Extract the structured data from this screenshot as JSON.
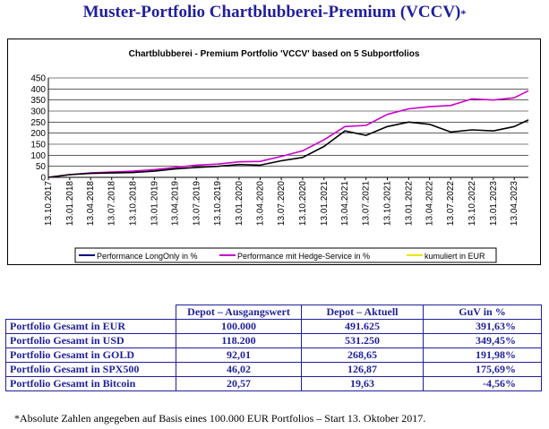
{
  "page": {
    "title": "Muster-Portfolio Chartblubberei-Premium (VCCV)",
    "title_mark": "*",
    "footnote": "*Absolute Zahlen angegeben auf Basis eines 100.000 EUR Portfolios – Start 13. Oktober 2017."
  },
  "chart_data": {
    "type": "line",
    "title": "Chartblubberei - Premium Portfolio 'VCCV' based on 5 Subportfolios",
    "xlabel": "",
    "ylabel": "",
    "ylim": [
      0,
      450
    ],
    "yticks": [
      "0",
      "50",
      "100",
      "150",
      "200",
      "250",
      "300",
      "350",
      "400",
      "450"
    ],
    "grid": true,
    "legend_position": "bottom",
    "x_ticks": [
      "13.10.2017",
      "13.01.2018",
      "13.04.2018",
      "13.07.2018",
      "13.10.2018",
      "13.01.2019",
      "13.04.2019",
      "13.07.2019",
      "13.10.2019",
      "13.01.2020",
      "13.04.2020",
      "13.07.2020",
      "13.10.2020",
      "13.01.2021",
      "13.04.2021",
      "13.07.2021",
      "13.10.2021",
      "13.01.2022",
      "13.04.2022",
      "13.07.2022",
      "13.10.2022",
      "13.01.2023",
      "13.04.2023"
    ],
    "series": [
      {
        "name": "Performance LongOnly in %",
        "color": "#000000",
        "x": [
          "13.10.2017",
          "13.01.2018",
          "13.04.2018",
          "13.07.2018",
          "13.10.2018",
          "13.01.2019",
          "13.04.2019",
          "13.07.2019",
          "13.10.2019",
          "13.01.2020",
          "13.04.2020",
          "13.07.2020",
          "13.10.2020",
          "13.01.2021",
          "13.04.2021",
          "13.07.2021",
          "13.10.2021",
          "13.01.2022",
          "13.04.2022",
          "13.07.2022",
          "13.10.2022",
          "13.01.2023",
          "13.04.2023",
          "13.06.2023"
        ],
        "values": [
          0,
          12,
          18,
          20,
          22,
          28,
          38,
          45,
          50,
          58,
          55,
          75,
          90,
          140,
          210,
          190,
          230,
          250,
          240,
          205,
          215,
          210,
          230,
          260
        ]
      },
      {
        "name": "Performance mit Hedge-Service in %",
        "color": "#cc00cc",
        "x": [
          "13.10.2017",
          "13.01.2018",
          "13.04.2018",
          "13.07.2018",
          "13.10.2018",
          "13.01.2019",
          "13.04.2019",
          "13.07.2019",
          "13.10.2019",
          "13.01.2020",
          "13.04.2020",
          "13.07.2020",
          "13.10.2020",
          "13.01.2021",
          "13.04.2021",
          "13.07.2021",
          "13.10.2021",
          "13.01.2022",
          "13.04.2022",
          "13.07.2022",
          "13.10.2022",
          "13.01.2023",
          "13.04.2023",
          "13.06.2023"
        ],
        "values": [
          0,
          12,
          20,
          24,
          28,
          35,
          45,
          55,
          60,
          70,
          72,
          95,
          120,
          170,
          230,
          235,
          285,
          310,
          320,
          325,
          355,
          350,
          360,
          392
        ]
      },
      {
        "name": "kumuliert in EUR",
        "color": "#e8e800",
        "x": [],
        "values": []
      }
    ]
  },
  "table": {
    "headers": [
      "",
      "Depot – Ausgangswert",
      "Depot – Aktuell",
      "GuV in %"
    ],
    "rows": [
      [
        "Portfolio Gesamt in EUR",
        "100.000",
        "491.625",
        "391,63%"
      ],
      [
        "Portfolio Gesamt in USD",
        "118.200",
        "531.250",
        "349,45%"
      ],
      [
        "Portfolio Gesamt in GOLD",
        "92,01",
        "268,65",
        "191,98%"
      ],
      [
        "Portfolio Gesamt in SPX500",
        "46,02",
        "126,87",
        "175,69%"
      ],
      [
        "Portfolio Gesamt in Bitcoin",
        "20,57",
        "19,63",
        "-4,56%"
      ]
    ]
  }
}
